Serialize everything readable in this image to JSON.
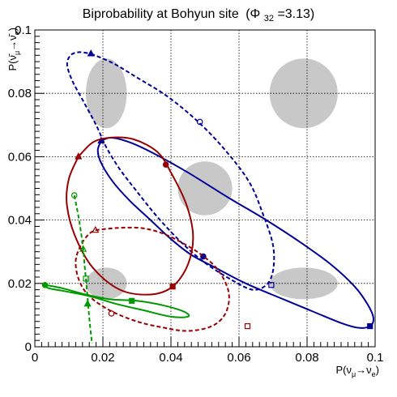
{
  "chart_data": {
    "type": "scatter",
    "title": "Biprobability at Bohyun site",
    "title_phase": "(Φ",
    "title_phase_sub": "32",
    "title_phase_val": " =3.13)",
    "xlabel_main": "P(ν",
    "xlabel_sub1": "μ",
    "xlabel_arrow": "→ν",
    "xlabel_sub2": "e",
    "xlabel_end": ")",
    "ylabel_main": "P(ν̄",
    "ylabel_sub1": "μ",
    "ylabel_arrow": "→ν̄",
    "ylabel_sub2": "e",
    "ylabel_end": ")",
    "xlim": [
      0,
      0.1
    ],
    "ylim": [
      0,
      0.1
    ],
    "xticks": [
      "0",
      "0.02",
      "0.04",
      "0.06",
      "0.08",
      "0.1"
    ],
    "yticks": [
      "0",
      "0.02",
      "0.04",
      "0.06",
      "0.08",
      "0.1"
    ],
    "grid": true,
    "colors": {
      "navy": "#000099",
      "darkred": "#990000",
      "green": "#009900",
      "gray_regions": "#c8c8c8"
    },
    "regions": [
      {
        "cx": 0.021,
        "cy": 0.08,
        "rx": 0.006,
        "ry": 0.011
      },
      {
        "cx": 0.079,
        "cy": 0.08,
        "rx": 0.01,
        "ry": 0.011
      },
      {
        "cx": 0.05,
        "cy": 0.05,
        "rx": 0.008,
        "ry": 0.0085
      },
      {
        "cx": 0.021,
        "cy": 0.02,
        "rx": 0.006,
        "ry": 0.005
      },
      {
        "cx": 0.079,
        "cy": 0.02,
        "rx": 0.01,
        "ry": 0.005
      }
    ],
    "series": [
      {
        "color": "navy",
        "dashed": false,
        "points": [
          [
            0.0195,
            0.065
          ],
          [
            0.0225,
            0.066
          ],
          [
            0.028,
            0.0645
          ],
          [
            0.035,
            0.061
          ],
          [
            0.045,
            0.055
          ],
          [
            0.057,
            0.047
          ],
          [
            0.068,
            0.04
          ],
          [
            0.078,
            0.033
          ],
          [
            0.087,
            0.026
          ],
          [
            0.094,
            0.019
          ],
          [
            0.098,
            0.013
          ],
          [
            0.0995,
            0.009
          ],
          [
            0.0985,
            0.0065
          ],
          [
            0.095,
            0.006
          ],
          [
            0.09,
            0.0075
          ],
          [
            0.082,
            0.011
          ],
          [
            0.073,
            0.015
          ],
          [
            0.062,
            0.02
          ],
          [
            0.053,
            0.025
          ],
          [
            0.046,
            0.029
          ],
          [
            0.04,
            0.034
          ],
          [
            0.034,
            0.04
          ],
          [
            0.028,
            0.046
          ],
          [
            0.023,
            0.052
          ],
          [
            0.0195,
            0.058
          ],
          [
            0.0185,
            0.062
          ],
          [
            0.0195,
            0.065
          ]
        ],
        "markers": [
          {
            "x": 0.0195,
            "y": 0.065,
            "shape": "tri-filled"
          },
          {
            "x": 0.0495,
            "y": 0.0285,
            "shape": "circle-filled"
          },
          {
            "x": 0.0985,
            "y": 0.0065,
            "shape": "square-filled"
          }
        ]
      },
      {
        "color": "navy",
        "dashed": true,
        "points": [
          [
            0.0165,
            0.0925
          ],
          [
            0.023,
            0.0895
          ],
          [
            0.03,
            0.085
          ],
          [
            0.039,
            0.079
          ],
          [
            0.048,
            0.071
          ],
          [
            0.056,
            0.062
          ],
          [
            0.063,
            0.052
          ],
          [
            0.067,
            0.042
          ],
          [
            0.07,
            0.032
          ],
          [
            0.07,
            0.024
          ],
          [
            0.068,
            0.0195
          ],
          [
            0.064,
            0.018
          ],
          [
            0.058,
            0.021
          ],
          [
            0.05,
            0.0265
          ],
          [
            0.043,
            0.033
          ],
          [
            0.036,
            0.041
          ],
          [
            0.03,
            0.049
          ],
          [
            0.025,
            0.056
          ],
          [
            0.021,
            0.063
          ],
          [
            0.018,
            0.07
          ],
          [
            0.014,
            0.078
          ],
          [
            0.011,
            0.084
          ],
          [
            0.0095,
            0.089
          ],
          [
            0.0105,
            0.092
          ],
          [
            0.013,
            0.093
          ],
          [
            0.0165,
            0.0925
          ]
        ],
        "markers": [
          {
            "x": 0.0165,
            "y": 0.0925,
            "shape": "tri-filled"
          },
          {
            "x": 0.0485,
            "y": 0.071,
            "shape": "circle-open"
          },
          {
            "x": 0.0695,
            "y": 0.0195,
            "shape": "square-open"
          }
        ]
      },
      {
        "color": "darkred",
        "dashed": false,
        "points": [
          [
            0.0128,
            0.06
          ],
          [
            0.017,
            0.0645
          ],
          [
            0.022,
            0.066
          ],
          [
            0.029,
            0.0655
          ],
          [
            0.036,
            0.0615
          ],
          [
            0.04,
            0.055
          ],
          [
            0.0445,
            0.045
          ],
          [
            0.0465,
            0.035
          ],
          [
            0.045,
            0.026
          ],
          [
            0.0405,
            0.019
          ],
          [
            0.034,
            0.0165
          ],
          [
            0.025,
            0.018
          ],
          [
            0.017,
            0.025
          ],
          [
            0.0118,
            0.035
          ],
          [
            0.0094,
            0.045
          ],
          [
            0.01,
            0.053
          ],
          [
            0.0128,
            0.06
          ]
        ],
        "markers": [
          {
            "x": 0.0128,
            "y": 0.06,
            "shape": "tri-filled"
          },
          {
            "x": 0.0385,
            "y": 0.0575,
            "shape": "circle-filled"
          },
          {
            "x": 0.0405,
            "y": 0.019,
            "shape": "square-filled"
          }
        ]
      },
      {
        "color": "darkred",
        "dashed": true,
        "points": [
          [
            0.0178,
            0.0368
          ],
          [
            0.024,
            0.0375
          ],
          [
            0.031,
            0.0375
          ],
          [
            0.037,
            0.036
          ],
          [
            0.043,
            0.033
          ],
          [
            0.049,
            0.029
          ],
          [
            0.054,
            0.024
          ],
          [
            0.057,
            0.017
          ],
          [
            0.056,
            0.0105
          ],
          [
            0.052,
            0.0065
          ],
          [
            0.045,
            0.005
          ],
          [
            0.038,
            0.006
          ],
          [
            0.03,
            0.008
          ],
          [
            0.022,
            0.0115
          ],
          [
            0.016,
            0.016
          ],
          [
            0.013,
            0.021
          ],
          [
            0.012,
            0.027
          ],
          [
            0.0135,
            0.032
          ],
          [
            0.0158,
            0.0355
          ],
          [
            0.0178,
            0.0368
          ]
        ],
        "markers": [
          {
            "x": 0.0178,
            "y": 0.0368,
            "shape": "tri-open"
          },
          {
            "x": 0.0225,
            "y": 0.0105,
            "shape": "circle-open"
          },
          {
            "x": 0.0625,
            "y": 0.0065,
            "shape": "square-open"
          }
        ]
      },
      {
        "color": "green",
        "dashed": false,
        "points": [
          [
            0.003,
            0.0195
          ],
          [
            0.008,
            0.0185
          ],
          [
            0.015,
            0.0165
          ],
          [
            0.022,
            0.015
          ],
          [
            0.03,
            0.0145
          ],
          [
            0.038,
            0.013
          ],
          [
            0.044,
            0.011
          ],
          [
            0.045,
            0.0095
          ],
          [
            0.04,
            0.0095
          ],
          [
            0.032,
            0.0115
          ],
          [
            0.024,
            0.0135
          ],
          [
            0.016,
            0.016
          ],
          [
            0.009,
            0.0175
          ],
          [
            0.004,
            0.0185
          ],
          [
            0.003,
            0.0195
          ]
        ],
        "markers": [
          {
            "x": 0.003,
            "y": 0.0195,
            "shape": "circle-filled"
          },
          {
            "x": 0.0155,
            "y": 0.0135,
            "shape": "tri-filled"
          },
          {
            "x": 0.0285,
            "y": 0.0145,
            "shape": "square-filled"
          }
        ]
      },
      {
        "color": "green",
        "dashed": true,
        "points": [
          [
            0.0116,
            0.0478
          ],
          [
            0.0125,
            0.043
          ],
          [
            0.0133,
            0.038
          ],
          [
            0.0142,
            0.031
          ],
          [
            0.0146,
            0.026
          ],
          [
            0.0153,
            0.018
          ],
          [
            0.0161,
            0.008
          ],
          [
            0.0168,
            0.001
          ]
        ],
        "markers": [
          {
            "x": 0.0116,
            "y": 0.0478,
            "shape": "circle-open"
          },
          {
            "x": 0.0142,
            "y": 0.0308,
            "shape": "tri-open"
          },
          {
            "x": 0.015,
            "y": 0.0215,
            "shape": "square-open"
          }
        ]
      }
    ]
  }
}
